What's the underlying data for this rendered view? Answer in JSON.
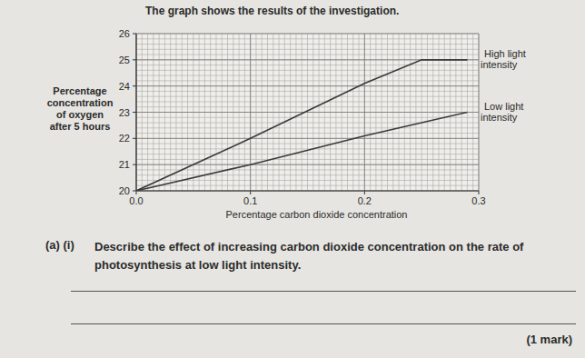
{
  "header": "The graph shows the results of the investigation.",
  "chart_data": {
    "type": "line",
    "xlabel": "Percentage carbon dioxide concentration",
    "ylabel": "Percentage concentration of oxygen after 5 hours",
    "x": [
      0,
      0.1,
      0.2,
      0.25,
      0.29
    ],
    "series": [
      {
        "name": "High light intensity",
        "color": "#3a3a3a",
        "values": [
          20,
          22,
          24.1,
          25,
          25
        ]
      },
      {
        "name": "Low light intensity",
        "color": "#3a3a3a",
        "values": [
          20,
          21,
          22.1,
          22.6,
          23
        ]
      }
    ],
    "xlim": [
      0,
      0.3
    ],
    "ylim": [
      20,
      26
    ],
    "xticks": [
      {
        "value": 0,
        "label": "0.0"
      },
      0.1,
      0.2,
      0.3
    ],
    "yticks": [
      20,
      21,
      22,
      23,
      24,
      25,
      26
    ],
    "grid": true
  },
  "question": {
    "number": "(a) (i)",
    "text": "Describe the effect of increasing carbon dioxide concentration on the rate of photosynthesis at low light intensity.",
    "marks": "(1 mark)"
  }
}
